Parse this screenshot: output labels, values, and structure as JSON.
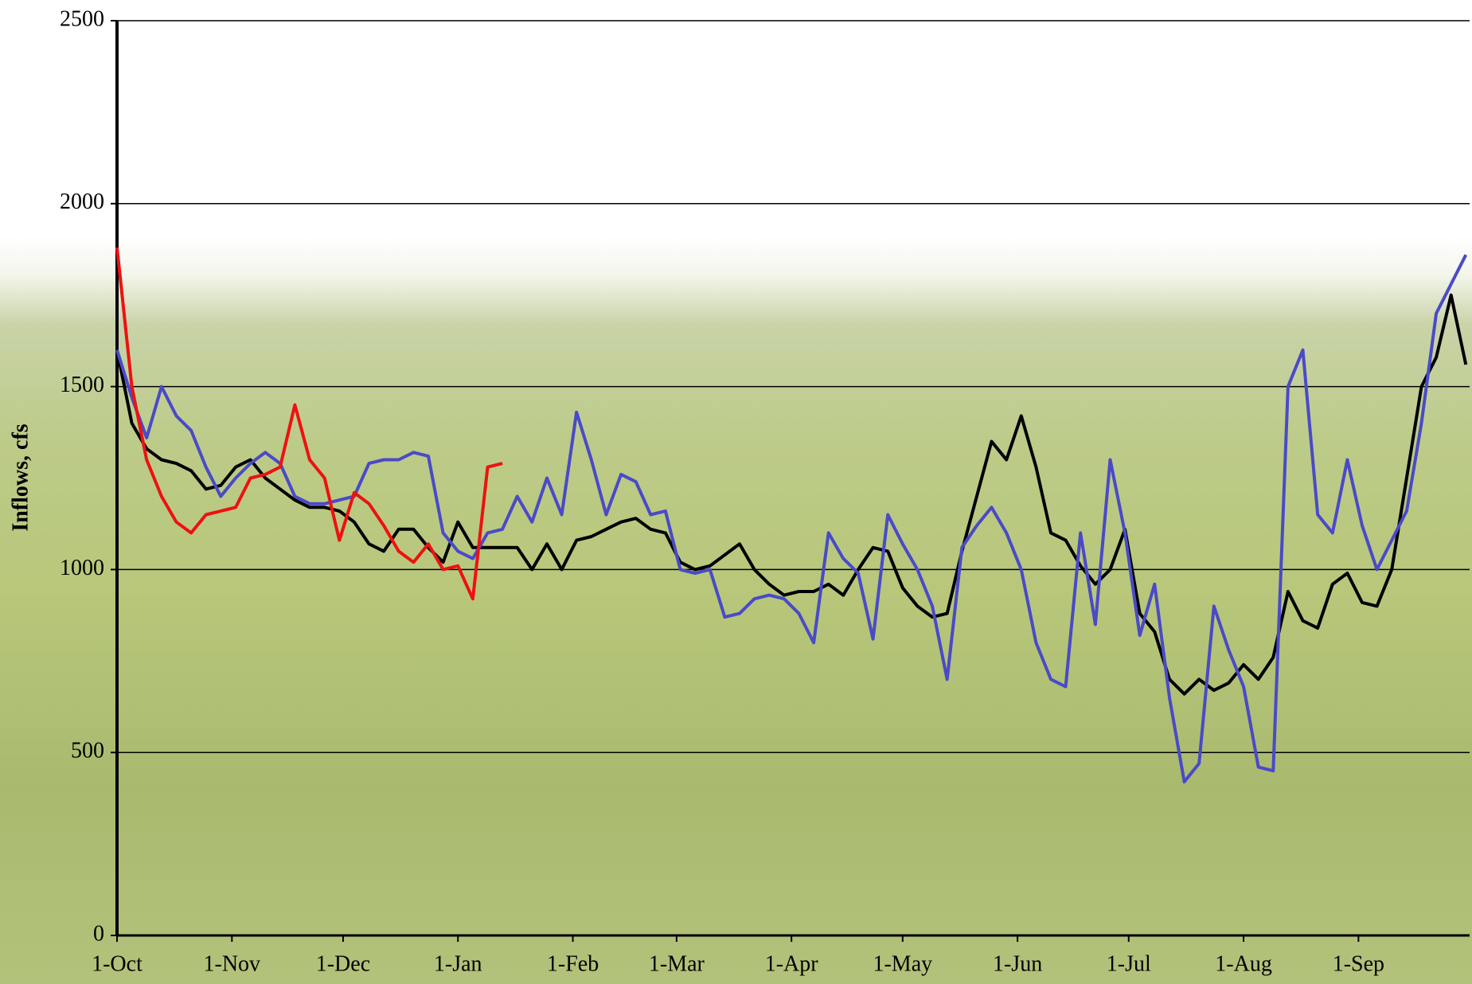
{
  "chart_data": {
    "type": "line",
    "y_label": "Inflows, cfs",
    "x": [
      0,
      4,
      8,
      12,
      16,
      20,
      24,
      28,
      32,
      36,
      40,
      44,
      48,
      52,
      56,
      60,
      64,
      68,
      72,
      76,
      80,
      84,
      88,
      92,
      96,
      100,
      104,
      108,
      112,
      116,
      120,
      124,
      128,
      132,
      136,
      140,
      144,
      148,
      152,
      156,
      160,
      164,
      168,
      172,
      176,
      180,
      184,
      188,
      192,
      196,
      200,
      204,
      208,
      212,
      216,
      220,
      224,
      228,
      232,
      236,
      240,
      244,
      248,
      252,
      256,
      260,
      264,
      268,
      272,
      276,
      280,
      284,
      288,
      292,
      296,
      300,
      304,
      308,
      312,
      316,
      320,
      324,
      328,
      332,
      336,
      340,
      344,
      348,
      352,
      356,
      360,
      364
    ],
    "series": [
      {
        "color": "#000000",
        "values": [
          1600,
          1400,
          1330,
          1300,
          1290,
          1270,
          1220,
          1230,
          1280,
          1300,
          1250,
          1220,
          1190,
          1170,
          1170,
          1160,
          1130,
          1070,
          1050,
          1110,
          1110,
          1060,
          1020,
          1130,
          1060,
          1060,
          1060,
          1060,
          1000,
          1070,
          1000,
          1080,
          1090,
          1110,
          1130,
          1140,
          1110,
          1100,
          1020,
          1000,
          1010,
          1040,
          1070,
          1000,
          960,
          930,
          940,
          940,
          960,
          930,
          1000,
          1060,
          1050,
          950,
          900,
          870,
          880,
          1050,
          1200,
          1350,
          1300,
          1420,
          1280,
          1100,
          1080,
          1010,
          960,
          1000,
          1110,
          880,
          830,
          700,
          660,
          700,
          670,
          690,
          740,
          700,
          760,
          940,
          860,
          840,
          960,
          990,
          910,
          900,
          1000,
          1250,
          1500,
          1580,
          1750,
          1560
        ]
      },
      {
        "color": "#4a4ac8",
        "values": [
          1600,
          1470,
          1360,
          1500,
          1420,
          1380,
          1280,
          1200,
          1250,
          1290,
          1320,
          1290,
          1200,
          1180,
          1180,
          1190,
          1200,
          1290,
          1300,
          1300,
          1320,
          1310,
          1100,
          1050,
          1030,
          1100,
          1110,
          1200,
          1130,
          1250,
          1150,
          1430,
          1300,
          1150,
          1260,
          1240,
          1150,
          1160,
          1000,
          990,
          1000,
          870,
          880,
          920,
          930,
          920,
          880,
          800,
          1100,
          1030,
          990,
          810,
          1150,
          1070,
          1000,
          900,
          700,
          1060,
          1120,
          1170,
          1100,
          1000,
          800,
          700,
          680,
          1100,
          850,
          1300,
          1100,
          820,
          960,
          650,
          420,
          470,
          900,
          780,
          680,
          460,
          450,
          1500,
          1600,
          1150,
          1100,
          1300,
          1120,
          1000,
          1080,
          1160,
          1400,
          1700,
          1780,
          1860
        ]
      },
      {
        "color": "#ee1111",
        "values": [
          1880,
          1500,
          1300,
          1200,
          1130,
          1100,
          1150,
          1160,
          1170,
          1250,
          1260,
          1280,
          1450,
          1300,
          1250,
          1080,
          1210,
          1180,
          1120,
          1050,
          1020,
          1070,
          1000,
          1010,
          920,
          1280,
          1290,
          null,
          null,
          null,
          null,
          null,
          null,
          null,
          null,
          null,
          null,
          null,
          null,
          null,
          null,
          null,
          null,
          null,
          null,
          null,
          null,
          null,
          null,
          null,
          null,
          null,
          null,
          null,
          null,
          null,
          null,
          null,
          null,
          null,
          null,
          null,
          null,
          null,
          null,
          null,
          null,
          null,
          null,
          null,
          null,
          null,
          null,
          null,
          null,
          null,
          null,
          null,
          null,
          null,
          null,
          null,
          null,
          null,
          null,
          null,
          null,
          null,
          null,
          null,
          null,
          null
        ]
      }
    ],
    "xlim": [
      0,
      365
    ],
    "xticks": [
      {
        "value": 0,
        "label": "1-Oct"
      },
      {
        "value": 31,
        "label": "1-Nov"
      },
      {
        "value": 61,
        "label": "1-Dec"
      },
      {
        "value": 92,
        "label": "1-Jan"
      },
      {
        "value": 123,
        "label": "1-Feb"
      },
      {
        "value": 151,
        "label": "1-Mar"
      },
      {
        "value": 182,
        "label": "1-Apr"
      },
      {
        "value": 212,
        "label": "1-May"
      },
      {
        "value": 243,
        "label": "1-Jun"
      },
      {
        "value": 273,
        "label": "1-Jul"
      },
      {
        "value": 304,
        "label": "1-Aug"
      },
      {
        "value": 335,
        "label": "1-Sep"
      }
    ],
    "ylim": [
      0,
      2500
    ],
    "yticks": [
      0,
      500,
      1000,
      1500,
      2000,
      2500
    ],
    "grid": true
  }
}
